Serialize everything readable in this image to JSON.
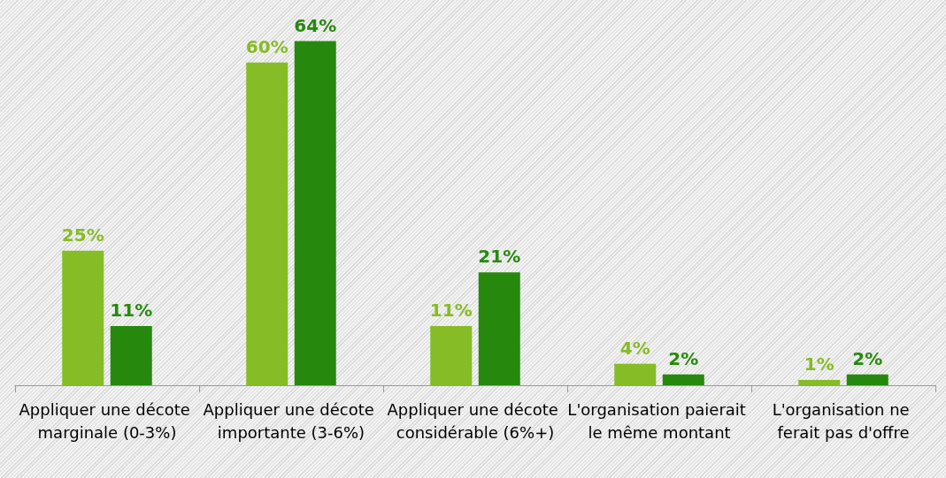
{
  "chart_data": {
    "type": "bar",
    "categories": [
      "Appliquer une décote marginale (0-3%)",
      "Appliquer une décote importante (3-6%)",
      "Appliquer une décote considérable (6%+)",
      "L'organisation paierait le même montant",
      "L'organisation ne ferait pas d'offre"
    ],
    "series": [
      {
        "color": "#86bc25",
        "values": [
          25,
          60,
          11,
          4,
          1
        ],
        "value_labels": [
          "25%",
          "60%",
          "11%",
          "4%",
          "1%"
        ]
      },
      {
        "color": "#26890d",
        "values": [
          11,
          64,
          21,
          2,
          2
        ],
        "value_labels": [
          "11%",
          "64%",
          "21%",
          "2%",
          "2%"
        ]
      }
    ],
    "grid": false
  }
}
